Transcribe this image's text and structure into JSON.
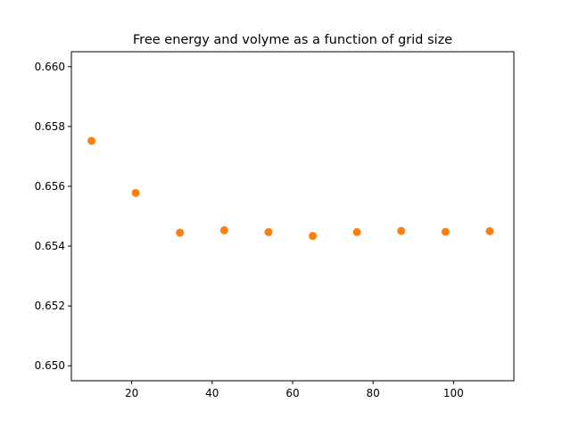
{
  "chart_data": {
    "type": "scatter",
    "title": "Free energy and volyme as a function of grid size",
    "xlabel": "",
    "ylabel": "",
    "xlim": [
      5,
      115
    ],
    "ylim": [
      0.6495,
      0.6605
    ],
    "x_ticks": [
      20,
      40,
      60,
      80,
      100
    ],
    "y_ticks": [
      0.65,
      0.652,
      0.654,
      0.656,
      0.658,
      0.66
    ],
    "x_tick_labels": [
      "20",
      "40",
      "60",
      "80",
      "100"
    ],
    "y_tick_labels": [
      "0.650",
      "0.652",
      "0.654",
      "0.656",
      "0.658",
      "0.660"
    ],
    "grid": false,
    "marker_color": "#ff7f0e",
    "series": [
      {
        "x": [
          10,
          21,
          32,
          43,
          54,
          65,
          76,
          87,
          98,
          109
        ],
        "y": [
          0.65752,
          0.65578,
          0.65445,
          0.65453,
          0.65447,
          0.65434,
          0.65447,
          0.65451,
          0.65448,
          0.6545
        ]
      }
    ]
  }
}
